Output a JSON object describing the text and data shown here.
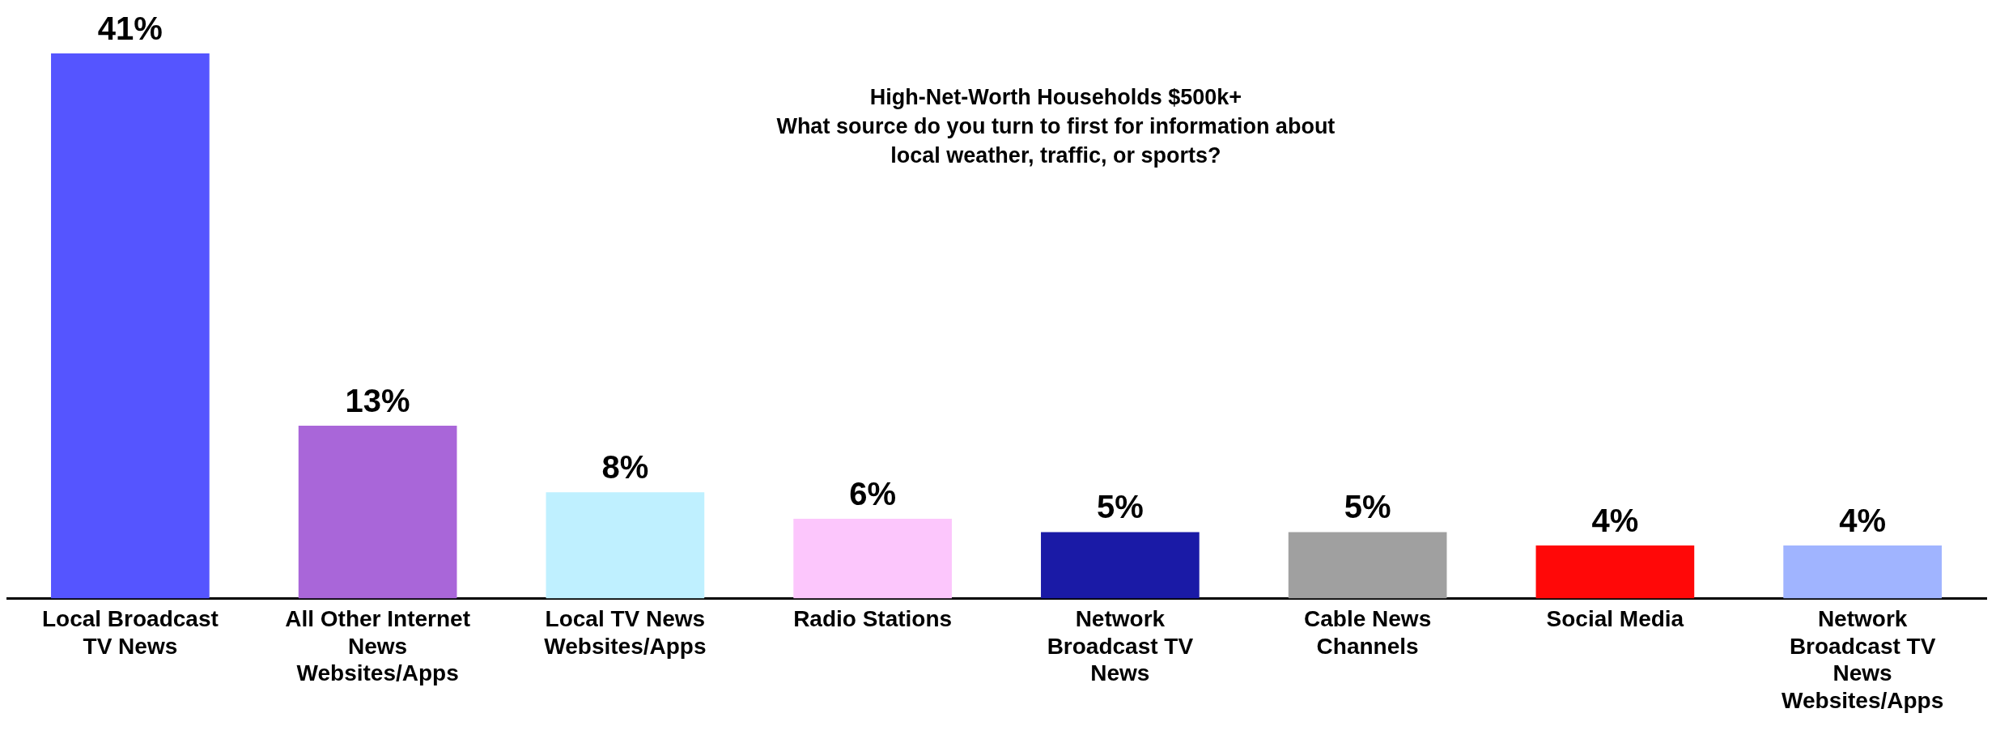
{
  "chart_data": {
    "type": "bar",
    "title": "High-Net-Worth Households $500k+\nWhat source do you turn to first for information about\nlocal weather, traffic, or sports?",
    "categories": [
      "Local Broadcast TV News",
      "All Other Internet News Websites/Apps",
      "Local TV News Websites/Apps",
      "Radio Stations",
      "Network Broadcast TV News",
      "Cable News Channels",
      "Social Media",
      "Network Broadcast TV News Websites/Apps"
    ],
    "values": [
      41,
      13,
      8,
      6,
      5,
      5,
      4,
      4
    ],
    "colors": [
      "#5555ff",
      "#a966d9",
      "#bff0ff",
      "#fcc6fc",
      "#1a1aa6",
      "#a0a0a0",
      "#ff0808",
      "#a0b4ff"
    ],
    "value_labels": [
      "41%",
      "13%",
      "8%",
      "6%",
      "5%",
      "5%",
      "4%",
      "4%"
    ],
    "grid": false,
    "legend": false
  }
}
